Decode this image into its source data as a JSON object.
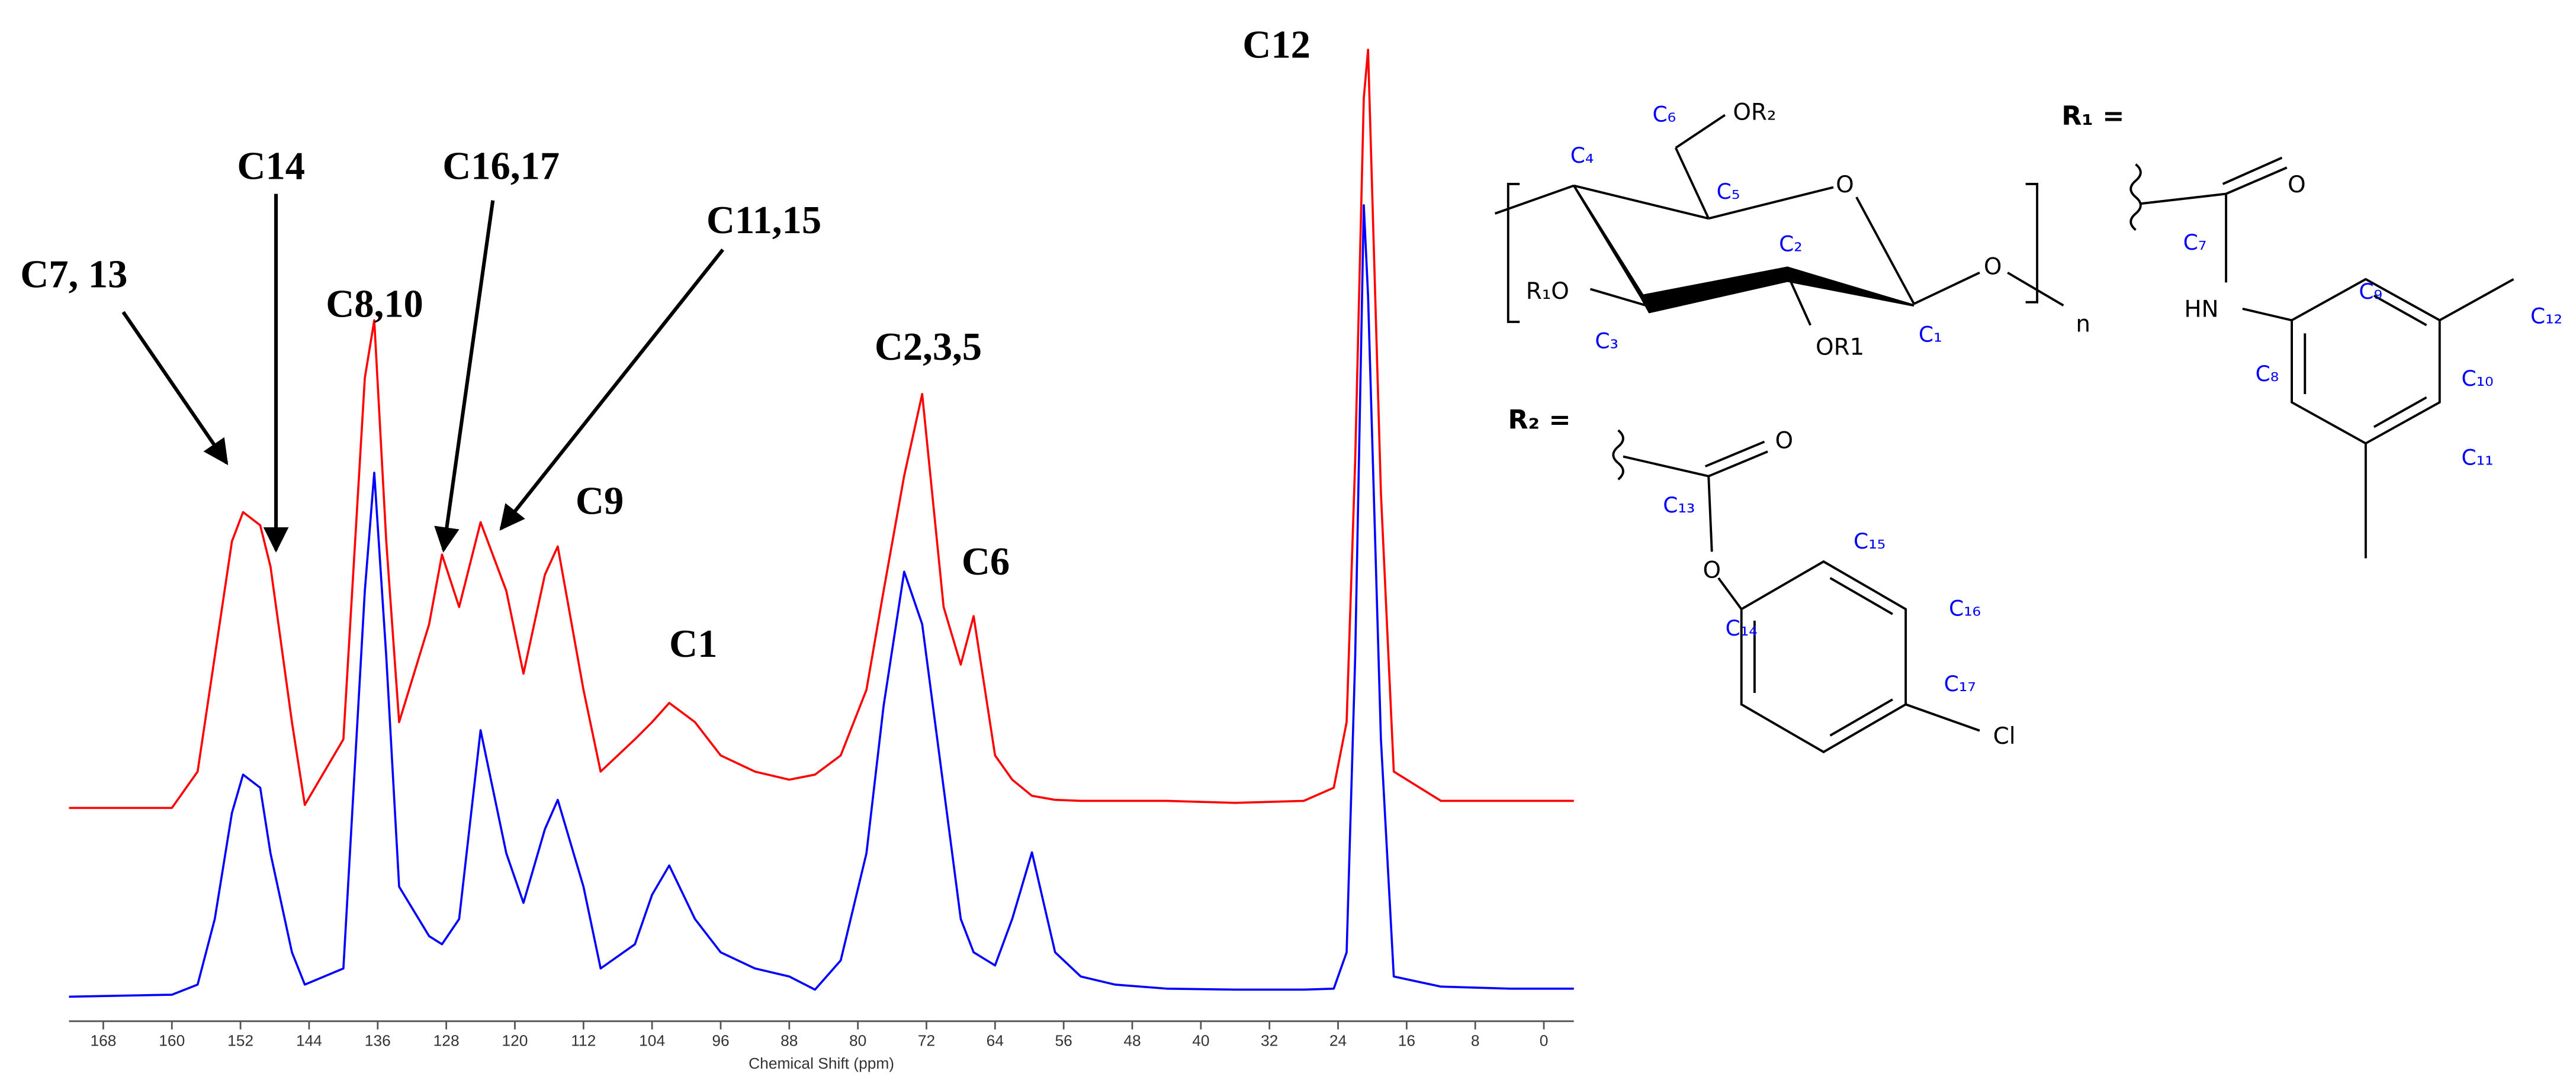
{
  "chart_data": {
    "type": "line",
    "xlabel": "Chemical Shift (ppm)",
    "x": [
      172,
      160,
      157,
      155,
      153,
      151.7,
      149.7,
      148.5,
      146,
      144.5,
      140,
      137.5,
      136.4,
      135,
      133.5,
      130,
      128.5,
      126.5,
      124,
      121,
      119,
      116.5,
      115,
      112,
      110,
      106,
      104,
      102,
      99,
      96,
      92,
      88,
      85,
      82,
      79,
      77,
      74.6,
      72.5,
      70,
      68,
      66.5,
      64,
      62,
      59.7,
      57,
      54,
      50,
      44,
      36,
      28,
      24.5,
      23,
      22,
      21,
      20.5,
      19,
      17.5,
      12,
      4,
      -3.5
    ],
    "series": [
      {
        "color": "#ff0000",
        "values": [
          20.8,
          20.8,
          24.4,
          35.8,
          47.2,
          50.1,
          48.8,
          44.7,
          29.3,
          21.1,
          27.6,
          63.4,
          69.1,
          47.2,
          29.3,
          39.0,
          45.9,
          40.7,
          49.1,
          42.3,
          34.1,
          43.9,
          46.7,
          32.5,
          24.4,
          27.6,
          29.3,
          31.2,
          29.3,
          26.0,
          24.4,
          23.6,
          24.1,
          26.0,
          32.5,
          42.3,
          53.7,
          61.8,
          40.7,
          35.0,
          39.8,
          26.0,
          23.6,
          22.0,
          21.6,
          21.5,
          21.5,
          21.5,
          21.3,
          21.5,
          22.8,
          29.3,
          55.3,
          91.1,
          95.9,
          52.0,
          24.4,
          21.5,
          21.5,
          21.5
        ]
      },
      {
        "color": "#0000ff",
        "values": [
          2.1,
          2.3,
          3.3,
          9.8,
          20.3,
          24.1,
          22.8,
          16.3,
          6.5,
          3.3,
          4.9,
          42.3,
          54.0,
          35.8,
          13.0,
          8.1,
          7.3,
          9.8,
          28.5,
          16.3,
          11.4,
          18.7,
          21.6,
          13.0,
          4.9,
          7.3,
          12.2,
          15.1,
          9.8,
          6.5,
          4.9,
          4.1,
          2.8,
          5.7,
          16.3,
          30.9,
          44.2,
          39.0,
          22.8,
          9.8,
          6.5,
          5.2,
          9.8,
          16.4,
          6.5,
          4.1,
          3.3,
          2.9,
          2.8,
          2.8,
          2.9,
          6.5,
          35.8,
          80.5,
          71.5,
          27.6,
          4.1,
          3.1,
          2.9,
          2.9
        ]
      }
    ],
    "xlim": [
      172,
      -3.5
    ],
    "ylim": [
      0,
      100
    ],
    "xticks": [
      168,
      160,
      152,
      144,
      136,
      128,
      120,
      112,
      104,
      96,
      88,
      80,
      72,
      64,
      56,
      48,
      40,
      32,
      24,
      16,
      8,
      0
    ],
    "annotations": [
      "C12",
      "C14",
      "C16,17",
      "C11,15",
      "C7, 13",
      "C8,10",
      "C2,3,5",
      "C9",
      "C1",
      "C6"
    ]
  },
  "structure": {
    "labels": [
      "C₆",
      "OR₂",
      "C₄",
      "C₅",
      "O",
      "C₂",
      "R₁O",
      "C₃",
      "OR1",
      "C₁",
      "O",
      "n",
      "R₁ =",
      "O",
      "C₇",
      "C₉",
      "HN",
      "C₁₂",
      "C₈",
      "C₁₀",
      "C₁₁",
      "R₂ =",
      "O",
      "C₁₃",
      "C₁₅",
      "O",
      "C₁₄",
      "C₁₆",
      "C₁₇",
      "Cl"
    ]
  }
}
